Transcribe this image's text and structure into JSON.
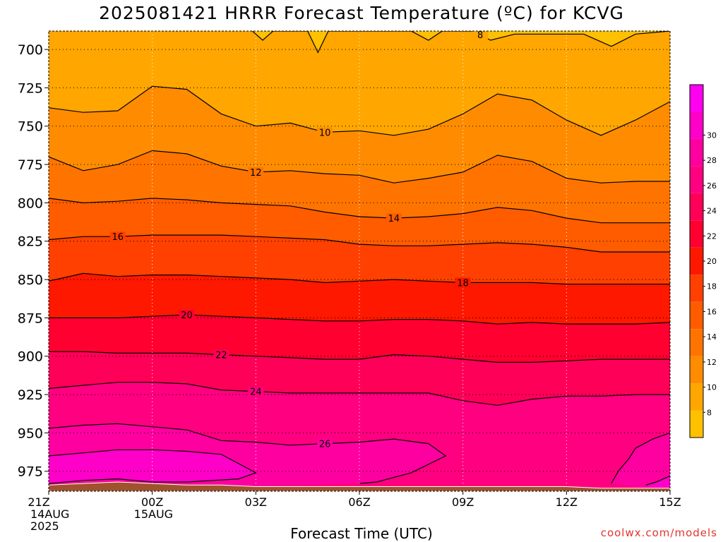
{
  "title": "2025081421 HRRR Forecast Temperature (ºC) for KCVG",
  "credit": "coolwx.com/models",
  "chart_data": {
    "type": "heatmap",
    "title": "2025081421 HRRR Forecast Temperature (ºC) for KCVG",
    "xlabel": "Forecast Time (UTC)",
    "ylabel": "",
    "x_ticks": [
      {
        "hour": 0,
        "lines": [
          "21Z",
          "14AUG",
          "2025"
        ]
      },
      {
        "hour": 3,
        "lines": [
          "00Z",
          "15AUG"
        ]
      },
      {
        "hour": 6,
        "lines": [
          "03Z"
        ]
      },
      {
        "hour": 9,
        "lines": [
          "06Z"
        ]
      },
      {
        "hour": 12,
        "lines": [
          "09Z"
        ]
      },
      {
        "hour": 15,
        "lines": [
          "12Z"
        ]
      },
      {
        "hour": 18,
        "lines": [
          "15Z"
        ]
      }
    ],
    "xlim": [
      0,
      18
    ],
    "y_ticks": [
      700,
      725,
      750,
      775,
      800,
      825,
      850,
      875,
      900,
      925,
      950,
      975
    ],
    "ylim": [
      688,
      988
    ],
    "grid": true,
    "colorbar": {
      "labels": [
        8,
        10,
        12,
        14,
        16,
        18,
        20,
        22,
        24,
        26,
        28,
        30
      ],
      "colors": [
        "#ffc000",
        "#ffa600",
        "#ff8c00",
        "#ff7400",
        "#ff5c00",
        "#ff4000",
        "#ff1800",
        "#ff0030",
        "#ff0058",
        "#ff0080",
        "#ff00a0",
        "#ff00c8",
        "#ff00f0"
      ],
      "bounds": [
        6,
        34
      ]
    },
    "contours": [
      {
        "level": 8,
        "label": "8",
        "label_at": 12.5,
        "pts": [
          [
            5.9,
            688
          ],
          [
            6.2,
            694
          ],
          [
            6.5,
            688
          ],
          [
            7.5,
            688
          ],
          [
            7.8,
            702
          ],
          [
            8.1,
            688
          ],
          [
            10.5,
            688
          ],
          [
            11.0,
            694
          ],
          [
            11.4,
            688
          ],
          [
            12.3,
            688
          ],
          [
            12.8,
            694
          ],
          [
            13.5,
            690
          ],
          [
            15.5,
            690
          ],
          [
            16.3,
            698
          ],
          [
            17.0,
            690
          ],
          [
            18.0,
            688
          ]
        ]
      },
      {
        "level": 10,
        "label": "10",
        "label_at": 8,
        "pts": [
          [
            0,
            738
          ],
          [
            1,
            741
          ],
          [
            2,
            740
          ],
          [
            3,
            724
          ],
          [
            4,
            726
          ],
          [
            5,
            742
          ],
          [
            6,
            750
          ],
          [
            7,
            748
          ],
          [
            8,
            754
          ],
          [
            9,
            753
          ],
          [
            10,
            756
          ],
          [
            11,
            752
          ],
          [
            12,
            742
          ],
          [
            13,
            729
          ],
          [
            14,
            733
          ],
          [
            15,
            746
          ],
          [
            16,
            756
          ],
          [
            17,
            746
          ],
          [
            18,
            734
          ]
        ]
      },
      {
        "level": 12,
        "label": "12",
        "label_at": 6,
        "pts": [
          [
            0,
            770
          ],
          [
            1,
            779
          ],
          [
            2,
            775
          ],
          [
            3,
            766
          ],
          [
            4,
            768
          ],
          [
            5,
            776
          ],
          [
            6,
            780
          ],
          [
            7,
            779
          ],
          [
            8,
            781
          ],
          [
            9,
            782
          ],
          [
            10,
            787
          ],
          [
            11,
            784
          ],
          [
            12,
            780
          ],
          [
            13,
            769
          ],
          [
            14,
            773
          ],
          [
            15,
            784
          ],
          [
            16,
            787
          ],
          [
            17,
            786
          ],
          [
            18,
            786
          ]
        ]
      },
      {
        "level": 14,
        "label": "14",
        "label_at": 10,
        "pts": [
          [
            0,
            797
          ],
          [
            1,
            800
          ],
          [
            2,
            799
          ],
          [
            3,
            797
          ],
          [
            4,
            798
          ],
          [
            5,
            800
          ],
          [
            6,
            801
          ],
          [
            7,
            802
          ],
          [
            8,
            806
          ],
          [
            9,
            809
          ],
          [
            10,
            810
          ],
          [
            11,
            809
          ],
          [
            12,
            807
          ],
          [
            13,
            803
          ],
          [
            14,
            805
          ],
          [
            15,
            810
          ],
          [
            16,
            813
          ],
          [
            17,
            813
          ],
          [
            18,
            813
          ]
        ]
      },
      {
        "level": 16,
        "label": "16",
        "label_at": 2,
        "pts": [
          [
            0,
            824
          ],
          [
            1,
            822
          ],
          [
            2,
            822
          ],
          [
            3,
            821
          ],
          [
            4,
            821
          ],
          [
            5,
            821
          ],
          [
            6,
            822
          ],
          [
            7,
            823
          ],
          [
            8,
            824
          ],
          [
            9,
            827
          ],
          [
            10,
            828
          ],
          [
            11,
            828
          ],
          [
            12,
            827
          ],
          [
            13,
            826
          ],
          [
            14,
            827
          ],
          [
            15,
            829
          ],
          [
            16,
            832
          ],
          [
            17,
            832
          ],
          [
            18,
            832
          ]
        ]
      },
      {
        "level": 18,
        "label": "18",
        "label_at": 12,
        "pts": [
          [
            0,
            851
          ],
          [
            1,
            846
          ],
          [
            2,
            848
          ],
          [
            3,
            847
          ],
          [
            4,
            847
          ],
          [
            5,
            848
          ],
          [
            6,
            849
          ],
          [
            7,
            850
          ],
          [
            8,
            852
          ],
          [
            9,
            851
          ],
          [
            10,
            850
          ],
          [
            11,
            851
          ],
          [
            12,
            852
          ],
          [
            13,
            852
          ],
          [
            14,
            852
          ],
          [
            15,
            853
          ],
          [
            16,
            853
          ],
          [
            17,
            853
          ],
          [
            18,
            853
          ]
        ]
      },
      {
        "level": 20,
        "label": "20",
        "label_at": 4,
        "pts": [
          [
            0,
            875
          ],
          [
            1,
            875
          ],
          [
            2,
            875
          ],
          [
            3,
            874
          ],
          [
            4,
            873
          ],
          [
            5,
            874
          ],
          [
            6,
            875
          ],
          [
            7,
            876
          ],
          [
            8,
            877
          ],
          [
            9,
            877
          ],
          [
            10,
            876
          ],
          [
            11,
            876
          ],
          [
            12,
            877
          ],
          [
            13,
            879
          ],
          [
            14,
            878
          ],
          [
            15,
            879
          ],
          [
            16,
            879
          ],
          [
            17,
            879
          ],
          [
            18,
            878
          ]
        ]
      },
      {
        "level": 22,
        "label": "22",
        "label_at": 5,
        "pts": [
          [
            0,
            897
          ],
          [
            1,
            897
          ],
          [
            2,
            898
          ],
          [
            3,
            898
          ],
          [
            4,
            898
          ],
          [
            5,
            899
          ],
          [
            6,
            900
          ],
          [
            7,
            901
          ],
          [
            8,
            902
          ],
          [
            9,
            902
          ],
          [
            10,
            899
          ],
          [
            11,
            900
          ],
          [
            12,
            902
          ],
          [
            13,
            904
          ],
          [
            14,
            904
          ],
          [
            15,
            903
          ],
          [
            16,
            902
          ],
          [
            17,
            902
          ],
          [
            18,
            902
          ]
        ]
      },
      {
        "level": 24,
        "label": "24",
        "label_at": 6,
        "pts": [
          [
            0,
            921
          ],
          [
            1,
            919
          ],
          [
            2,
            917
          ],
          [
            3,
            917
          ],
          [
            4,
            918
          ],
          [
            5,
            922
          ],
          [
            6,
            923
          ],
          [
            7,
            924
          ],
          [
            8,
            924
          ],
          [
            9,
            924
          ],
          [
            10,
            924
          ],
          [
            11,
            924
          ],
          [
            12,
            929
          ],
          [
            13,
            932
          ],
          [
            14,
            928
          ],
          [
            15,
            926
          ],
          [
            16,
            926
          ],
          [
            17,
            925
          ],
          [
            18,
            925
          ]
        ]
      },
      {
        "level": 26,
        "label": "26",
        "label_at": 8,
        "pts": [
          [
            0,
            947
          ],
          [
            1,
            945
          ],
          [
            2,
            944
          ],
          [
            3,
            946
          ],
          [
            4,
            948
          ],
          [
            5,
            955
          ],
          [
            6,
            956
          ],
          [
            7,
            958
          ],
          [
            8,
            957
          ],
          [
            9,
            956
          ],
          [
            10,
            954
          ],
          [
            11,
            957
          ],
          [
            11.5,
            965
          ],
          [
            10.5,
            976
          ],
          [
            9.5,
            982
          ],
          [
            9,
            983
          ]
        ]
      },
      {
        "level": 26,
        "label": "",
        "label_at": -1,
        "pts": [
          [
            18,
            950
          ],
          [
            17.5,
            954
          ],
          [
            17,
            960
          ],
          [
            16.8,
            967
          ],
          [
            16.5,
            975
          ],
          [
            16.3,
            983
          ]
        ]
      },
      {
        "level": 28,
        "label": "",
        "label_at": -1,
        "pts": [
          [
            0,
            965
          ],
          [
            1,
            963
          ],
          [
            2,
            961
          ],
          [
            3,
            961
          ],
          [
            4,
            962
          ],
          [
            5,
            964
          ],
          [
            6,
            976
          ],
          [
            5.5,
            980
          ],
          [
            4,
            982
          ],
          [
            3,
            982
          ],
          [
            2,
            980
          ],
          [
            1,
            981
          ],
          [
            0,
            983
          ]
        ]
      },
      {
        "level": 28,
        "label": "",
        "label_at": -1,
        "pts": [
          [
            18,
            978
          ],
          [
            17.6,
            982
          ],
          [
            17.3,
            984
          ]
        ]
      }
    ],
    "ground": {
      "color": "#a0522d",
      "pts": [
        [
          0,
          984
        ],
        [
          1,
          983
        ],
        [
          2,
          982
        ],
        [
          3,
          983
        ],
        [
          4,
          984
        ],
        [
          5,
          984
        ],
        [
          6,
          985
        ],
        [
          7,
          985
        ],
        [
          8,
          985
        ],
        [
          9,
          985
        ],
        [
          10,
          985
        ],
        [
          11,
          985
        ],
        [
          12,
          985
        ],
        [
          13,
          985
        ],
        [
          14,
          985
        ],
        [
          15,
          985
        ],
        [
          16,
          986
        ],
        [
          17,
          986
        ],
        [
          18,
          986
        ]
      ]
    }
  }
}
